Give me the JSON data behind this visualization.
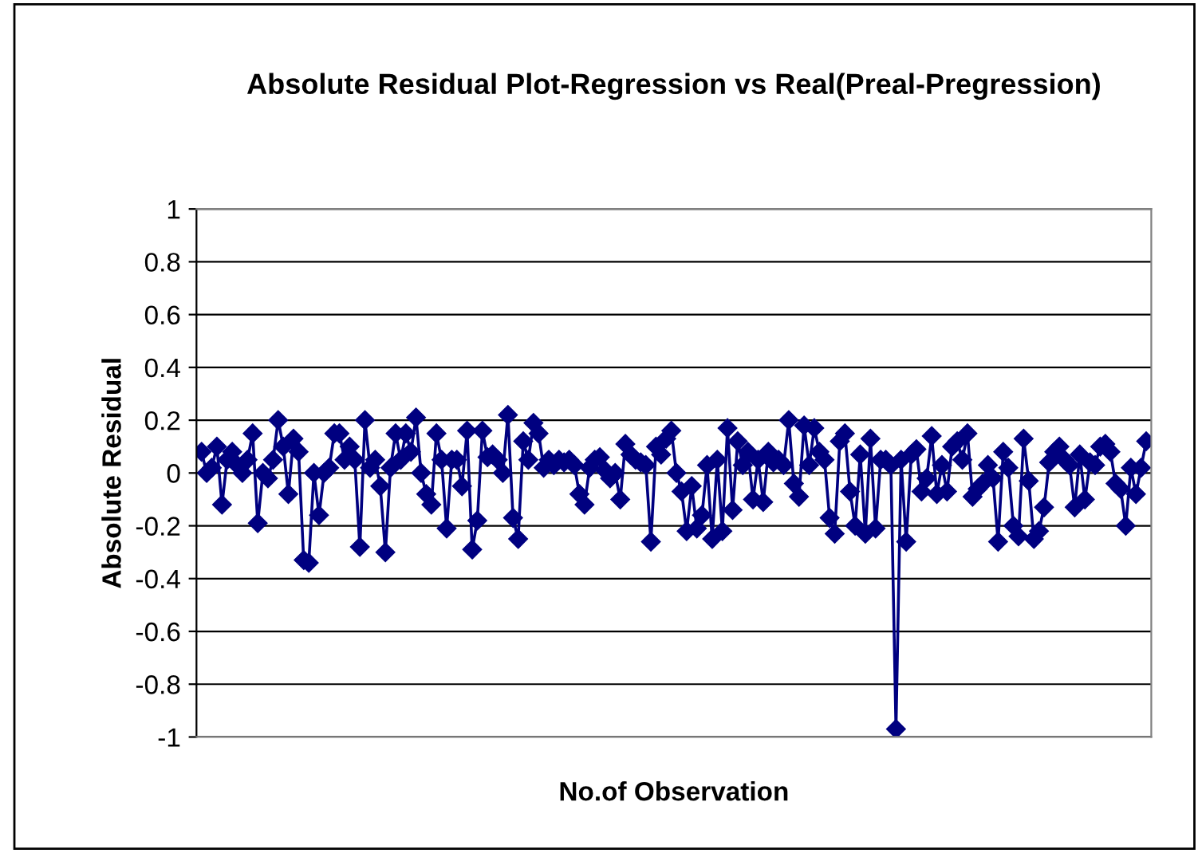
{
  "chart_data": {
    "type": "line",
    "title": "Absolute Residual Plot-Regression vs Real(Preal-Pregression)",
    "xlabel": "No.of Observation",
    "ylabel": "Absolute Residual",
    "categories": [
      null,
      null,
      null,
      null,
      null,
      null,
      null,
      null,
      null,
      null,
      null,
      null,
      null,
      null,
      null,
      null,
      null,
      null,
      null,
      null,
      null,
      null,
      null,
      null,
      null,
      null,
      null,
      null,
      null,
      null,
      null,
      null,
      null,
      null,
      null,
      null,
      null,
      null,
      null,
      null,
      null,
      null,
      null,
      null,
      null,
      null,
      null,
      null,
      null,
      null,
      null,
      null,
      null,
      null,
      null,
      null,
      null,
      null,
      null,
      null,
      null,
      null,
      null,
      null,
      null,
      null,
      null,
      null,
      null,
      null,
      null,
      null,
      null,
      null,
      null,
      null,
      null,
      null,
      null,
      null,
      null,
      null,
      null,
      null,
      null,
      null,
      null,
      null,
      null,
      null,
      null,
      null,
      null,
      null,
      null,
      null,
      null,
      null,
      null,
      null,
      null,
      null,
      null,
      null,
      null,
      null,
      null,
      null,
      null,
      null,
      null,
      null,
      null,
      null,
      null,
      null,
      null,
      null,
      null,
      null,
      null,
      null,
      null,
      null,
      null,
      null,
      null,
      null,
      null,
      null,
      null,
      null,
      null,
      null,
      null,
      null,
      null,
      null,
      null,
      null,
      null,
      null,
      null,
      null,
      null,
      null,
      null,
      null,
      null,
      null,
      null,
      null,
      null,
      null,
      null,
      null,
      null,
      null,
      null,
      null,
      null,
      null,
      null,
      null,
      null,
      null,
      null,
      null,
      null,
      null,
      null,
      null,
      null,
      null,
      null,
      null,
      null,
      null,
      null,
      null,
      null,
      null,
      null,
      null,
      null,
      null
    ],
    "series": [
      {
        "color": "#000080",
        "values": [
          0.08,
          0.0,
          0.02,
          0.1,
          -0.12,
          0.05,
          0.08,
          0.03,
          0.0,
          0.05,
          0.15,
          -0.19,
          0.0,
          -0.02,
          0.05,
          0.2,
          0.1,
          -0.08,
          0.13,
          0.08,
          -0.33,
          -0.34,
          0.0,
          -0.16,
          0.0,
          0.02,
          0.15,
          0.15,
          0.05,
          0.1,
          0.05,
          -0.28,
          0.2,
          0.02,
          0.05,
          -0.05,
          -0.3,
          0.02,
          0.15,
          0.05,
          0.15,
          0.08,
          0.21,
          0.0,
          -0.08,
          -0.12,
          0.15,
          0.05,
          -0.21,
          0.05,
          0.05,
          -0.05,
          0.16,
          -0.29,
          -0.18,
          0.16,
          0.06,
          0.07,
          0.05,
          0.0,
          0.22,
          -0.17,
          -0.25,
          0.12,
          0.05,
          0.19,
          0.15,
          0.02,
          0.05,
          0.03,
          0.05,
          0.04,
          0.05,
          0.03,
          -0.08,
          -0.12,
          0.02,
          0.05,
          0.06,
          0.01,
          -0.02,
          0.0,
          -0.1,
          0.11,
          0.07,
          0.05,
          0.04,
          0.03,
          -0.26,
          0.1,
          0.07,
          0.13,
          0.16,
          0.0,
          -0.07,
          -0.22,
          -0.05,
          -0.21,
          -0.16,
          0.03,
          -0.25,
          0.05,
          -0.22,
          0.17,
          -0.14,
          0.12,
          0.03,
          0.08,
          -0.1,
          0.05,
          -0.11,
          0.08,
          0.04,
          0.05,
          0.03,
          0.2,
          -0.04,
          -0.09,
          0.18,
          0.03,
          0.17,
          0.08,
          0.05,
          -0.17,
          -0.23,
          0.12,
          0.15,
          -0.07,
          -0.2,
          0.07,
          -0.23,
          0.13,
          -0.21,
          0.05,
          0.05,
          0.03,
          -0.97,
          0.05,
          -0.26,
          0.07,
          0.09,
          -0.07,
          -0.02,
          0.14,
          -0.08,
          0.03,
          -0.07,
          0.1,
          0.12,
          0.05,
          0.15,
          -0.09,
          -0.06,
          -0.04,
          0.03,
          -0.02,
          -0.26,
          0.08,
          0.02,
          -0.2,
          -0.24,
          0.13,
          -0.03,
          -0.25,
          -0.22,
          -0.13,
          0.04,
          0.08,
          0.1,
          0.05,
          0.03,
          -0.13,
          0.07,
          -0.1,
          0.04,
          0.03,
          0.1,
          0.11,
          0.08,
          -0.04,
          -0.06,
          -0.2,
          0.02,
          -0.08,
          0.02,
          0.12
        ]
      }
    ],
    "ylim": [
      -1,
      1
    ],
    "yticks": [
      -1,
      -0.8,
      -0.6,
      -0.4,
      -0.2,
      0,
      0.2,
      0.4,
      0.6,
      0.8,
      1
    ],
    "grid": "y",
    "marker": "diamond",
    "line_style": "solid",
    "tick_labels": "y"
  }
}
